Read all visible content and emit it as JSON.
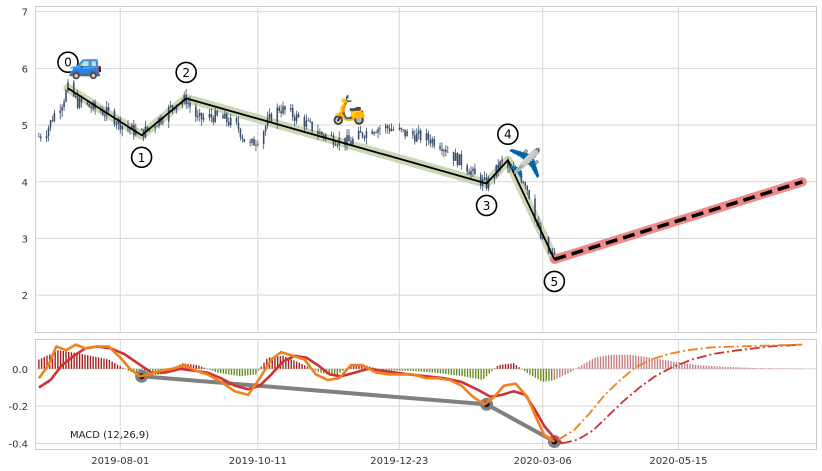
{
  "chart_data": [
    {
      "type": "candlestick",
      "panel": "price",
      "ylim": [
        1.35,
        7.1
      ],
      "y_ticks": [
        2,
        3,
        4,
        5,
        6,
        7
      ],
      "x_tick_labels": [
        "2019-08-01",
        "2019-10-11",
        "2019-12-23",
        "2020-03-06",
        "2020-05-15"
      ],
      "x_tick_dates": [
        "2019-08-01",
        "2019-10-11",
        "2019-12-23",
        "2020-03-06",
        "2020-05-15"
      ],
      "x_range": [
        "2019-06-18",
        "2020-07-25"
      ],
      "grid": true,
      "price_path": [
        [
          "2019-06-20",
          4.8
        ],
        [
          "2019-06-24",
          4.9
        ],
        [
          "2019-06-28",
          5.2
        ],
        [
          "2019-07-02",
          5.4
        ],
        [
          "2019-07-05",
          5.65
        ],
        [
          "2019-07-10",
          5.4
        ],
        [
          "2019-07-18",
          5.3
        ],
        [
          "2019-07-26",
          5.2
        ],
        [
          "2019-08-02",
          5.0
        ],
        [
          "2019-08-08",
          4.9
        ],
        [
          "2019-08-12",
          4.85
        ],
        [
          "2019-08-18",
          5.0
        ],
        [
          "2019-08-24",
          5.2
        ],
        [
          "2019-08-30",
          5.4
        ],
        [
          "2019-09-04",
          5.45
        ],
        [
          "2019-09-10",
          5.1
        ],
        [
          "2019-09-18",
          5.15
        ],
        [
          "2019-09-24",
          5.1
        ],
        [
          "2019-10-01",
          4.95
        ],
        [
          "2019-10-06",
          4.6
        ],
        [
          "2019-10-12",
          4.8
        ],
        [
          "2019-10-17",
          5.1
        ],
        [
          "2019-10-22",
          5.3
        ],
        [
          "2019-10-28",
          5.2
        ],
        [
          "2019-11-04",
          5.05
        ],
        [
          "2019-11-12",
          4.85
        ],
        [
          "2019-11-20",
          4.75
        ],
        [
          "2019-11-28",
          4.7
        ],
        [
          "2019-12-04",
          4.85
        ],
        [
          "2019-12-10",
          4.95
        ],
        [
          "2019-12-18",
          4.95
        ],
        [
          "2019-12-26",
          4.85
        ],
        [
          "2020-01-02",
          4.8
        ],
        [
          "2020-01-08",
          4.75
        ],
        [
          "2020-01-14",
          4.65
        ],
        [
          "2020-01-20",
          4.45
        ],
        [
          "2020-01-26",
          4.3
        ],
        [
          "2020-02-01",
          4.05
        ],
        [
          "2020-02-06",
          3.95
        ],
        [
          "2020-02-10",
          4.15
        ],
        [
          "2020-02-14",
          4.35
        ],
        [
          "2020-02-18",
          4.2
        ],
        [
          "2020-02-22",
          4.15
        ],
        [
          "2020-02-26",
          4.0
        ],
        [
          "2020-03-01",
          3.55
        ],
        [
          "2020-03-05",
          3.0
        ],
        [
          "2020-03-09",
          2.75
        ],
        [
          "2020-03-12",
          2.65
        ]
      ],
      "wave_points": [
        {
          "label": "0",
          "date": "2019-07-05",
          "value": 5.65
        },
        {
          "label": "1",
          "date": "2019-08-12",
          "value": 4.82
        },
        {
          "label": "2",
          "date": "2019-09-04",
          "value": 5.47
        },
        {
          "label": "3",
          "date": "2020-02-06",
          "value": 3.97
        },
        {
          "label": "4",
          "date": "2020-02-17",
          "value": 4.38
        },
        {
          "label": "5",
          "date": "2020-03-12",
          "value": 2.63
        }
      ],
      "projection": {
        "from": [
          "2020-03-12",
          2.63
        ],
        "to": [
          "2020-07-18",
          4.0
        ]
      },
      "emoji_markers": [
        {
          "name": "car",
          "glyph": "🚙",
          "date": "2019-07-14",
          "value": 6.05
        },
        {
          "name": "scooter",
          "glyph": "🛵",
          "date": "2019-11-27",
          "value": 5.25
        },
        {
          "name": "airplane",
          "glyph": "✈️",
          "date": "2020-02-26",
          "value": 4.3
        }
      ],
      "colors": {
        "candles": "#3b4f6b",
        "wave_line": "#000000",
        "wave_band": "#c7d3ae",
        "projection_line": "#000000",
        "projection_band": "#ee8a88"
      }
    },
    {
      "type": "macd",
      "panel": "indicator",
      "legend_label": "MACD (12,26,9)",
      "ylim": [
        -0.43,
        0.16
      ],
      "y_ticks": [
        0.0,
        -0.2,
        -0.4
      ],
      "y_tick_labels": [
        "0.0",
        "-0.2",
        "-0.4"
      ],
      "grid": true,
      "macd_line": [
        [
          "2019-06-20",
          -0.05
        ],
        [
          "2019-06-25",
          0.02
        ],
        [
          "2019-06-29",
          0.12
        ],
        [
          "2019-07-04",
          0.1
        ],
        [
          "2019-07-09",
          0.13
        ],
        [
          "2019-07-14",
          0.11
        ],
        [
          "2019-07-20",
          0.12
        ],
        [
          "2019-07-26",
          0.12
        ],
        [
          "2019-08-01",
          0.06
        ],
        [
          "2019-08-06",
          0.0
        ],
        [
          "2019-08-11",
          -0.04
        ],
        [
          "2019-08-16",
          -0.03
        ],
        [
          "2019-08-22",
          -0.01
        ],
        [
          "2019-08-28",
          0.0
        ],
        [
          "2019-09-03",
          0.02
        ],
        [
          "2019-09-09",
          -0.01
        ],
        [
          "2019-09-15",
          -0.03
        ],
        [
          "2019-09-22",
          -0.07
        ],
        [
          "2019-09-29",
          -0.12
        ],
        [
          "2019-10-06",
          -0.14
        ],
        [
          "2019-10-12",
          -0.05
        ],
        [
          "2019-10-18",
          0.05
        ],
        [
          "2019-10-23",
          0.09
        ],
        [
          "2019-10-29",
          0.07
        ],
        [
          "2019-11-04",
          0.05
        ],
        [
          "2019-11-10",
          -0.03
        ],
        [
          "2019-11-16",
          -0.06
        ],
        [
          "2019-11-22",
          -0.05
        ],
        [
          "2019-11-28",
          0.02
        ],
        [
          "2019-12-04",
          0.02
        ],
        [
          "2019-12-11",
          -0.02
        ],
        [
          "2019-12-18",
          -0.03
        ],
        [
          "2019-12-24",
          -0.03
        ],
        [
          "2019-12-30",
          -0.03
        ],
        [
          "2020-01-06",
          -0.05
        ],
        [
          "2020-01-12",
          -0.05
        ],
        [
          "2020-01-18",
          -0.06
        ],
        [
          "2020-01-24",
          -0.09
        ],
        [
          "2020-01-30",
          -0.15
        ],
        [
          "2020-02-05",
          -0.19
        ],
        [
          "2020-02-10",
          -0.15
        ],
        [
          "2020-02-15",
          -0.09
        ],
        [
          "2020-02-21",
          -0.08
        ],
        [
          "2020-02-27",
          -0.15
        ],
        [
          "2020-03-03",
          -0.27
        ],
        [
          "2020-03-07",
          -0.36
        ],
        [
          "2020-03-12",
          -0.39
        ]
      ],
      "signal_line": [
        [
          "2019-06-20",
          -0.1
        ],
        [
          "2019-06-26",
          -0.06
        ],
        [
          "2019-07-02",
          0.02
        ],
        [
          "2019-07-08",
          0.07
        ],
        [
          "2019-07-14",
          0.11
        ],
        [
          "2019-07-20",
          0.12
        ],
        [
          "2019-07-27",
          0.11
        ],
        [
          "2019-08-03",
          0.08
        ],
        [
          "2019-08-10",
          0.03
        ],
        [
          "2019-08-17",
          -0.02
        ],
        [
          "2019-08-24",
          -0.02
        ],
        [
          "2019-09-01",
          0.0
        ],
        [
          "2019-09-08",
          -0.01
        ],
        [
          "2019-09-15",
          -0.02
        ],
        [
          "2019-09-22",
          -0.05
        ],
        [
          "2019-09-29",
          -0.09
        ],
        [
          "2019-10-06",
          -0.11
        ],
        [
          "2019-10-12",
          -0.09
        ],
        [
          "2019-10-18",
          -0.03
        ],
        [
          "2019-10-24",
          0.04
        ],
        [
          "2019-10-30",
          0.07
        ],
        [
          "2019-11-05",
          0.06
        ],
        [
          "2019-11-11",
          0.02
        ],
        [
          "2019-11-17",
          -0.03
        ],
        [
          "2019-11-23",
          -0.04
        ],
        [
          "2019-11-30",
          -0.02
        ],
        [
          "2019-12-07",
          0.0
        ],
        [
          "2019-12-14",
          -0.01
        ],
        [
          "2019-12-21",
          -0.02
        ],
        [
          "2019-12-28",
          -0.03
        ],
        [
          "2020-01-06",
          -0.04
        ],
        [
          "2020-01-15",
          -0.05
        ],
        [
          "2020-01-24",
          -0.07
        ],
        [
          "2020-02-01",
          -0.11
        ],
        [
          "2020-02-08",
          -0.15
        ],
        [
          "2020-02-14",
          -0.14
        ],
        [
          "2020-02-20",
          -0.12
        ],
        [
          "2020-02-26",
          -0.14
        ],
        [
          "2020-03-02",
          -0.22
        ],
        [
          "2020-03-07",
          -0.31
        ],
        [
          "2020-03-12",
          -0.37
        ],
        [
          "2020-03-16",
          -0.4
        ]
      ],
      "macd_projection": [
        [
          "2020-03-14",
          -0.38
        ],
        [
          "2020-03-22",
          -0.33
        ],
        [
          "2020-03-30",
          -0.24
        ],
        [
          "2020-04-07",
          -0.14
        ],
        [
          "2020-04-15",
          -0.06
        ],
        [
          "2020-04-23",
          0.01
        ],
        [
          "2020-05-01",
          0.05
        ],
        [
          "2020-05-10",
          0.08
        ],
        [
          "2020-05-20",
          0.1
        ],
        [
          "2020-06-01",
          0.115
        ],
        [
          "2020-06-15",
          0.12
        ],
        [
          "2020-07-01",
          0.125
        ],
        [
          "2020-07-18",
          0.13
        ]
      ],
      "signal_projection": [
        [
          "2020-03-16",
          -0.4
        ],
        [
          "2020-03-24",
          -0.38
        ],
        [
          "2020-04-01",
          -0.33
        ],
        [
          "2020-04-09",
          -0.25
        ],
        [
          "2020-04-17",
          -0.17
        ],
        [
          "2020-04-25",
          -0.1
        ],
        [
          "2020-05-03",
          -0.04
        ],
        [
          "2020-05-12",
          0.01
        ],
        [
          "2020-05-22",
          0.05
        ],
        [
          "2020-06-02",
          0.08
        ],
        [
          "2020-06-15",
          0.1
        ],
        [
          "2020-07-01",
          0.12
        ],
        [
          "2020-07-18",
          0.13
        ]
      ],
      "histogram_profile": [
        [
          "2019-06-20",
          0.05
        ],
        [
          "2019-06-30",
          0.1
        ],
        [
          "2019-07-12",
          0.08
        ],
        [
          "2019-07-26",
          0.05
        ],
        [
          "2019-08-05",
          -0.01
        ],
        [
          "2019-08-12",
          -0.04
        ],
        [
          "2019-08-22",
          -0.03
        ],
        [
          "2019-09-02",
          0.03
        ],
        [
          "2019-09-10",
          0.02
        ],
        [
          "2019-09-20",
          -0.02
        ],
        [
          "2019-10-02",
          -0.04
        ],
        [
          "2019-10-10",
          -0.03
        ],
        [
          "2019-10-16",
          0.06
        ],
        [
          "2019-10-24",
          0.07
        ],
        [
          "2019-11-02",
          0.03
        ],
        [
          "2019-11-12",
          -0.02
        ],
        [
          "2019-11-20",
          -0.04
        ],
        [
          "2019-11-28",
          0.02
        ],
        [
          "2019-12-05",
          0.02
        ],
        [
          "2019-12-15",
          -0.01
        ],
        [
          "2019-12-28",
          -0.01
        ],
        [
          "2020-01-10",
          -0.02
        ],
        [
          "2020-01-25",
          -0.04
        ],
        [
          "2020-02-04",
          -0.06
        ],
        [
          "2020-02-12",
          0.02
        ],
        [
          "2020-02-20",
          0.03
        ],
        [
          "2020-02-28",
          -0.03
        ],
        [
          "2020-03-06",
          -0.07
        ],
        [
          "2020-03-12",
          -0.06
        ],
        [
          "2020-03-20",
          -0.02
        ],
        [
          "2020-03-26",
          0.02
        ],
        [
          "2020-04-02",
          0.06
        ],
        [
          "2020-04-10",
          0.075
        ],
        [
          "2020-04-20",
          0.075
        ],
        [
          "2020-05-01",
          0.06
        ],
        [
          "2020-05-12",
          0.04
        ],
        [
          "2020-05-25",
          0.02
        ],
        [
          "2020-06-10",
          0.01
        ],
        [
          "2020-06-25",
          0.004
        ],
        [
          "2020-07-10",
          0.002
        ],
        [
          "2020-07-18",
          0.001
        ]
      ],
      "histogram_split_date": "2020-03-12",
      "wave_points": [
        {
          "date": "2019-08-12",
          "value": -0.04
        },
        {
          "date": "2020-02-06",
          "value": -0.19
        },
        {
          "date": "2020-03-12",
          "value": -0.39
        }
      ],
      "colors": {
        "macd_line": "#f2801d",
        "signal_line": "#cc3333",
        "hist_positive": "#a32020",
        "hist_negative": "#6b8e23",
        "hist_projection": "#c77e80",
        "wave_line": "#808080",
        "wave_dot": "#111111"
      }
    }
  ]
}
